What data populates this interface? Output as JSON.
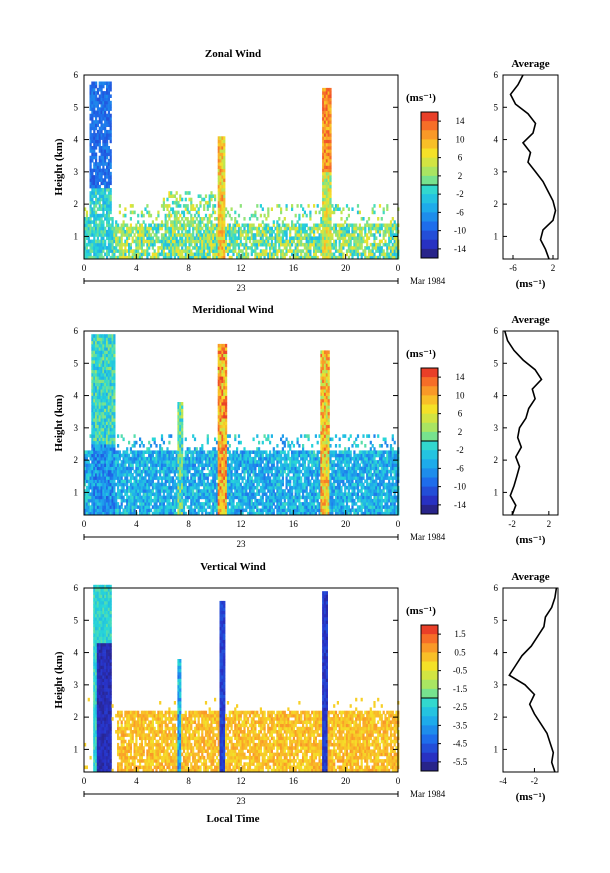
{
  "figure": {
    "x_axis_title": "Local Time",
    "date_suffix": "Mar 1984",
    "day_label": "23"
  },
  "chart_data": [
    {
      "type": "heatmap",
      "title": "Zonal Wind",
      "ylabel": "Height (km)",
      "xlim": [
        0,
        24
      ],
      "ylim": [
        0.3,
        6
      ],
      "x_ticks": [
        "0",
        "4",
        "8",
        "12",
        "16",
        "20",
        "0"
      ],
      "y_ticks": [
        "1",
        "2",
        "3",
        "4",
        "5",
        "6"
      ],
      "colorbar": {
        "unit": "(ms⁻¹)",
        "ticks": [
          "14",
          "10",
          "6",
          "2",
          "-2",
          "-6",
          "-10",
          "-14"
        ],
        "range": [
          -16,
          16
        ]
      },
      "color_description": "mostly cyan-green (-2 to 2) near surface; blue columns (-6 to -10) at 0-2 h; red/orange columns near 10.5 h and 18.5 h",
      "profile": {
        "title": "Average",
        "xlabel": "(ms⁻¹)",
        "x_ticks": [
          "-6",
          "2"
        ],
        "xlim": [
          -8,
          3
        ],
        "heights": [
          0.3,
          0.6,
          0.9,
          1.2,
          1.5,
          1.8,
          2.1,
          2.4,
          2.7,
          3.0,
          3.3,
          3.6,
          3.9,
          4.2,
          4.5,
          4.8,
          5.1,
          5.4,
          5.7,
          6.0
        ],
        "values": [
          1.2,
          0.5,
          -0.5,
          0.0,
          2.0,
          2.5,
          2.0,
          1.0,
          0.0,
          -1.5,
          -3.0,
          -2.5,
          -4.0,
          -2.0,
          -1.5,
          -3.0,
          -5.5,
          -6.5,
          -5.0,
          -4.0
        ]
      }
    },
    {
      "type": "heatmap",
      "title": "Meridional Wind",
      "ylabel": "Height (km)",
      "xlim": [
        0,
        24
      ],
      "ylim": [
        0.3,
        6
      ],
      "x_ticks": [
        "0",
        "4",
        "8",
        "12",
        "16",
        "20",
        "0"
      ],
      "y_ticks": [
        "1",
        "2",
        "3",
        "4",
        "5",
        "6"
      ],
      "colorbar": {
        "unit": "(ms⁻¹)",
        "ticks": [
          "14",
          "10",
          "6",
          "2",
          "-2",
          "-6",
          "-10",
          "-14"
        ],
        "range": [
          -16,
          16
        ]
      },
      "color_description": "predominantly cyan/blue (-2 to -8) below 2.2 km; vivid columns near 1 h, 10.5 h and 18.5 h",
      "profile": {
        "title": "Average",
        "xlabel": "(ms⁻¹)",
        "x_ticks": [
          "-2",
          "2"
        ],
        "xlim": [
          -3,
          3
        ],
        "heights": [
          0.3,
          0.6,
          0.9,
          1.2,
          1.5,
          1.8,
          2.1,
          2.4,
          2.7,
          3.0,
          3.3,
          3.6,
          3.9,
          4.2,
          4.5,
          4.8,
          5.1,
          5.4,
          5.7,
          6.0
        ],
        "values": [
          -2.0,
          -1.6,
          -2.2,
          -1.8,
          -1.5,
          -1.2,
          -1.6,
          -1.0,
          -1.4,
          -1.2,
          -0.5,
          -0.2,
          0.5,
          0.2,
          1.2,
          0.5,
          -0.8,
          -1.8,
          -2.5,
          -2.8
        ]
      }
    },
    {
      "type": "heatmap",
      "title": "Vertical Wind",
      "ylabel": "Height (km)",
      "xlim": [
        0,
        24
      ],
      "ylim": [
        0.3,
        6
      ],
      "x_ticks": [
        "0",
        "4",
        "8",
        "12",
        "16",
        "20",
        "0"
      ],
      "y_ticks": [
        "1",
        "2",
        "3",
        "4",
        "5",
        "6"
      ],
      "colorbar": {
        "unit": "(ms⁻¹)",
        "ticks": [
          "1.5",
          "0.5",
          "-0.5",
          "-1.5",
          "-2.5",
          "-3.5",
          "-4.5",
          "-5.5"
        ],
        "range": [
          -6,
          2
        ]
      },
      "color_description": "orange/yellow (0 to 1) below 2.2 km; dark blue columns (-5 to -6) near 1.5 h, 10.5 h and 18.5 h",
      "profile": {
        "title": "Average",
        "xlabel": "(ms⁻¹)",
        "x_ticks": [
          "-4",
          "-2"
        ],
        "xlim": [
          -4,
          -0.5
        ],
        "heights": [
          0.3,
          0.6,
          0.9,
          1.2,
          1.5,
          1.8,
          2.1,
          2.4,
          2.7,
          3.0,
          3.3,
          3.6,
          3.9,
          4.2,
          4.5,
          4.8,
          5.1,
          5.4,
          5.7,
          6.0
        ],
        "values": [
          -0.7,
          -0.9,
          -0.8,
          -1.0,
          -1.2,
          -1.6,
          -2.0,
          -2.3,
          -2.0,
          -2.6,
          -3.6,
          -3.2,
          -2.8,
          -2.2,
          -1.8,
          -1.4,
          -1.3,
          -0.9,
          -0.7,
          -0.6
        ]
      }
    }
  ]
}
